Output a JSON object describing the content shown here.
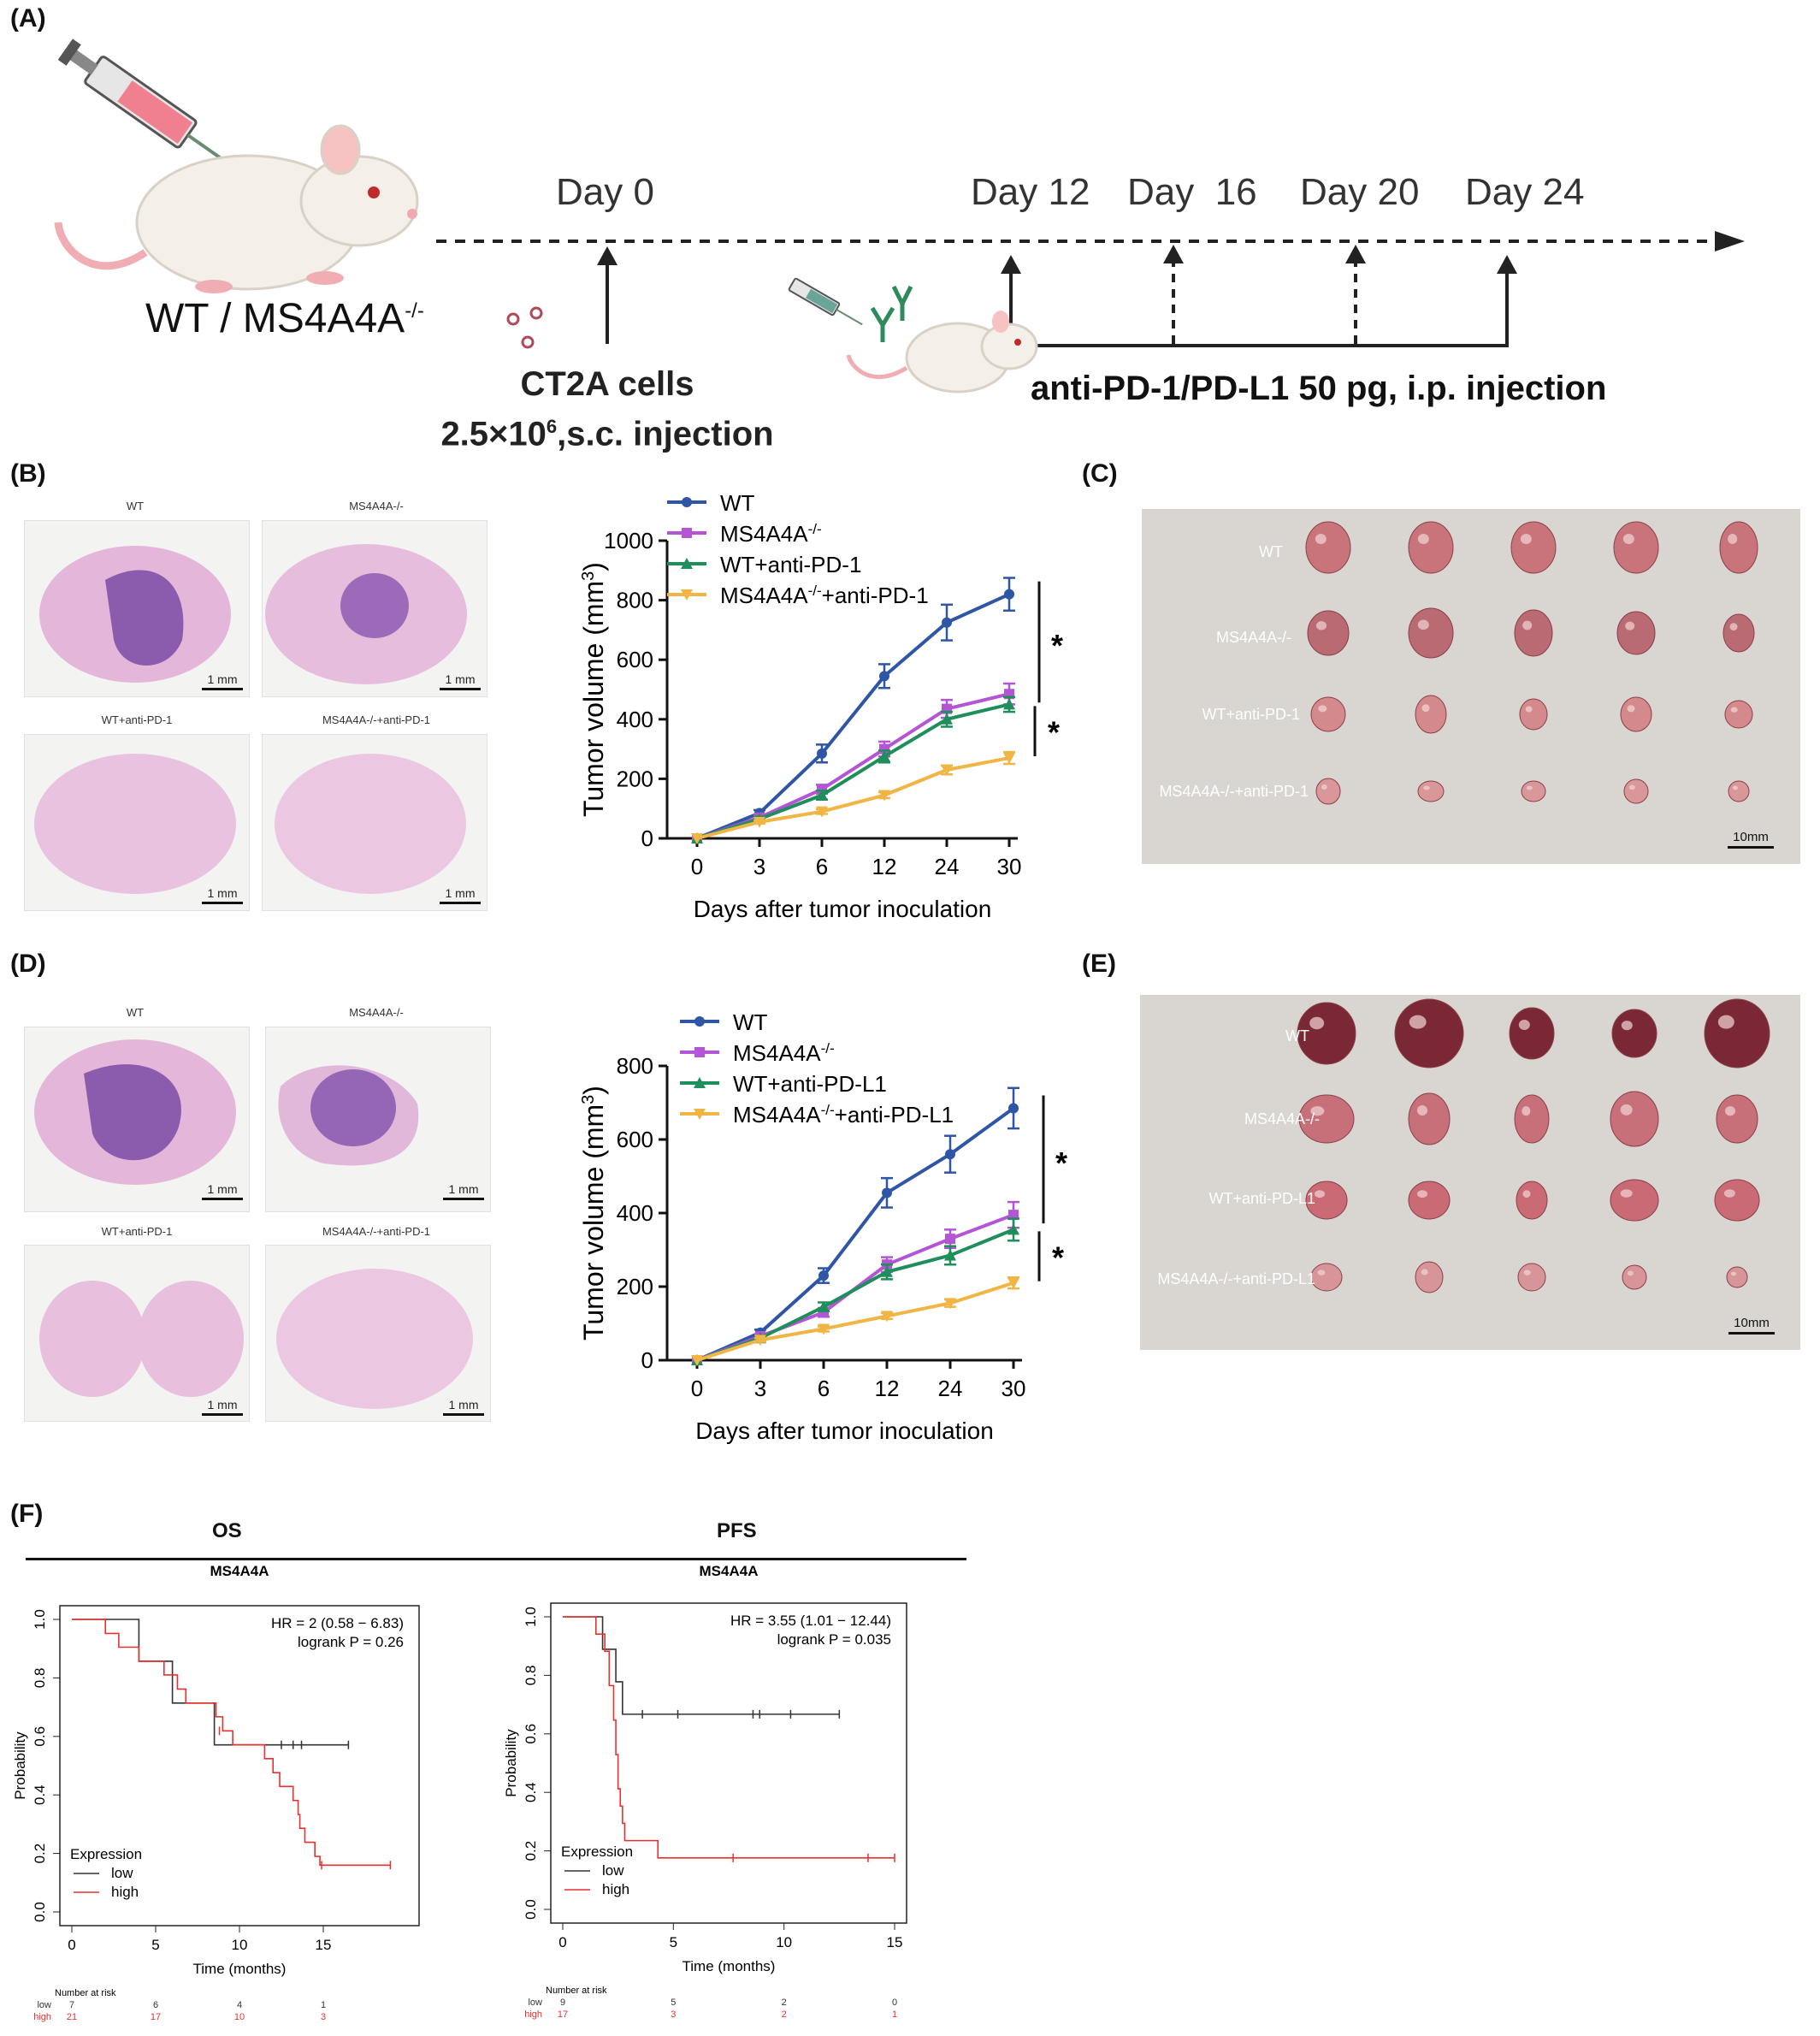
{
  "panel_labels": {
    "A": "(A)",
    "B": "(B)",
    "C": "(C)",
    "D": "(D)",
    "E": "(E)",
    "F": "(F)"
  },
  "timeline": {
    "mouse_label": "WT / MS4A4A",
    "mouse_label_sup": "-/-",
    "days": [
      "Day 0",
      "Day 12",
      "Day  16",
      "Day 20",
      "Day 24"
    ],
    "cells_line1": "CT2A cells",
    "cells_line2_pre": "2.5×10",
    "cells_line2_sup": "6",
    "cells_line2_post": ",s.c. injection",
    "treatment": "anti-PD-1/PD-L1 50 pg, i.p. injection"
  },
  "histology_B": {
    "labels": [
      "WT",
      "MS4A4A-/-",
      "WT+anti-PD-1",
      "MS4A4A-/-+anti-PD-1"
    ],
    "scale": "1 mm"
  },
  "histology_D": {
    "labels": [
      "WT",
      "MS4A4A-/-",
      "WT+anti-PD-1",
      "MS4A4A-/-+anti-PD-1"
    ],
    "scale": "1 mm"
  },
  "photo_C": {
    "labels": [
      "WT",
      "MS4A4A-/-",
      "WT+anti-PD-1",
      "MS4A4A-/-+anti-PD-1"
    ],
    "scale": "10mm",
    "colors": [
      "#c9747a",
      "#b96a72",
      "#d48a8c",
      "#d9979a"
    ]
  },
  "photo_E": {
    "labels": [
      "WT",
      "MS4A4A-/-",
      "WT+anti-PD-L1",
      "MS4A4A-/-+anti-PD-L1"
    ],
    "scale": "10mm",
    "colors": [
      "#7a2836",
      "#c8707a",
      "#c96a75",
      "#d7959a"
    ]
  },
  "chart_data": [
    {
      "type": "line",
      "panel": "B",
      "xlabel": "Days after tumor inoculation",
      "ylabel": "Tumor volume (mm3)",
      "categories": [
        "0",
        "3",
        "6",
        "12",
        "24",
        "30"
      ],
      "ylim": [
        0,
        1000
      ],
      "yticks": [
        0,
        200,
        400,
        600,
        800,
        1000
      ],
      "series": [
        {
          "name": "WT",
          "color": "#2e55a6",
          "marker": "circle",
          "values": [
            0,
            85,
            285,
            545,
            725,
            820
          ],
          "err": [
            0,
            10,
            30,
            40,
            60,
            55
          ]
        },
        {
          "name": "MS4A4A-/-",
          "color": "#b455d6",
          "marker": "square",
          "values": [
            0,
            70,
            165,
            300,
            435,
            485
          ],
          "err": [
            0,
            8,
            15,
            25,
            30,
            35
          ]
        },
        {
          "name": "WT+anti-PD-1",
          "color": "#1e8f5a",
          "marker": "triangle",
          "values": [
            0,
            65,
            145,
            275,
            400,
            450
          ],
          "err": [
            0,
            8,
            15,
            20,
            25,
            25
          ]
        },
        {
          "name": "MS4A4A-/-+anti-PD-1",
          "color": "#f0b545",
          "marker": "triangle-down",
          "values": [
            0,
            55,
            90,
            145,
            230,
            270
          ],
          "err": [
            0,
            5,
            8,
            10,
            15,
            20
          ]
        }
      ],
      "significance": [
        "*",
        "*"
      ]
    },
    {
      "type": "line",
      "panel": "D",
      "xlabel": "Days after tumor inoculation",
      "ylabel": "Tumor volume (mm3)",
      "categories": [
        "0",
        "3",
        "6",
        "12",
        "24",
        "30"
      ],
      "ylim": [
        0,
        800
      ],
      "yticks": [
        0,
        200,
        400,
        600,
        800
      ],
      "series": [
        {
          "name": "WT",
          "color": "#2e55a6",
          "marker": "circle",
          "values": [
            0,
            75,
            230,
            455,
            560,
            685
          ],
          "err": [
            0,
            8,
            20,
            40,
            50,
            55
          ]
        },
        {
          "name": "MS4A4A-/-",
          "color": "#b455d6",
          "marker": "square",
          "values": [
            0,
            65,
            130,
            260,
            330,
            395
          ],
          "err": [
            0,
            6,
            12,
            20,
            25,
            35
          ]
        },
        {
          "name": "WT+anti-PD-L1",
          "color": "#1e8f5a",
          "marker": "triangle",
          "values": [
            0,
            60,
            145,
            240,
            285,
            355
          ],
          "err": [
            0,
            6,
            12,
            20,
            25,
            30
          ]
        },
        {
          "name": "MS4A4A-/-+anti-PD-L1",
          "color": "#f0b545",
          "marker": "triangle-down",
          "values": [
            0,
            55,
            85,
            120,
            155,
            210
          ],
          "err": [
            0,
            5,
            7,
            8,
            10,
            15
          ]
        }
      ],
      "significance": [
        "*",
        "*"
      ]
    },
    {
      "type": "line",
      "panel": "F-OS",
      "header": "OS",
      "title": "MS4A4A",
      "xlabel": "Time (months)",
      "ylabel": "Probability",
      "xlim": [
        0,
        20
      ],
      "xticks": [
        0,
        5,
        10,
        15
      ],
      "ylim": [
        0,
        1
      ],
      "yticks": [
        "0.0",
        "0.2",
        "0.4",
        "0.6",
        "0.8",
        "1.0"
      ],
      "hr": "HR = 2 (0.58 − 6.83)",
      "logrank": "logrank P = 0.26",
      "legend_title": "Expression",
      "series": [
        {
          "name": "low",
          "color": "#333333",
          "steps": [
            [
              0,
              1
            ],
            [
              4,
              1
            ],
            [
              4,
              0.857
            ],
            [
              6,
              0.857
            ],
            [
              6,
              0.714
            ],
            [
              8.5,
              0.714
            ],
            [
              8.5,
              0.571
            ],
            [
              16.5,
              0.571
            ]
          ],
          "censor": [
            [
              12.5,
              0.571
            ],
            [
              13.2,
              0.571
            ],
            [
              13.7,
              0.571
            ],
            [
              16.5,
              0.571
            ]
          ]
        },
        {
          "name": "high",
          "color": "#e8312f",
          "steps": [
            [
              0,
              1
            ],
            [
              2,
              1
            ],
            [
              2,
              0.952
            ],
            [
              2.8,
              0.952
            ],
            [
              2.8,
              0.905
            ],
            [
              4,
              0.905
            ],
            [
              4,
              0.857
            ],
            [
              5.5,
              0.857
            ],
            [
              5.5,
              0.81
            ],
            [
              6.3,
              0.81
            ],
            [
              6.3,
              0.762
            ],
            [
              6.8,
              0.762
            ],
            [
              6.8,
              0.714
            ],
            [
              8.6,
              0.714
            ],
            [
              8.6,
              0.667
            ],
            [
              9,
              0.667
            ],
            [
              9,
              0.619
            ],
            [
              9.6,
              0.619
            ],
            [
              9.6,
              0.571
            ],
            [
              11.5,
              0.571
            ],
            [
              11.5,
              0.524
            ],
            [
              12,
              0.524
            ],
            [
              12,
              0.476
            ],
            [
              12.4,
              0.476
            ],
            [
              12.4,
              0.429
            ],
            [
              13.2,
              0.429
            ],
            [
              13.2,
              0.381
            ],
            [
              13.5,
              0.381
            ],
            [
              13.5,
              0.333
            ],
            [
              13.6,
              0.333
            ],
            [
              13.6,
              0.286
            ],
            [
              13.9,
              0.286
            ],
            [
              13.9,
              0.238
            ],
            [
              14.5,
              0.238
            ],
            [
              14.5,
              0.19
            ],
            [
              14.8,
              0.19
            ],
            [
              14.8,
              0.16
            ],
            [
              19,
              0.16
            ]
          ],
          "censor": [
            [
              8.8,
              0.619
            ],
            [
              14.9,
              0.16
            ],
            [
              19,
              0.16
            ]
          ]
        }
      ],
      "risk_header": "Number at risk",
      "risk_times": [
        0,
        5,
        10,
        15
      ],
      "risk": [
        {
          "label": "low",
          "counts": [
            "7",
            "6",
            "4",
            "1"
          ]
        },
        {
          "label": "high",
          "counts": [
            "21",
            "17",
            "10",
            "3"
          ]
        }
      ]
    },
    {
      "type": "line",
      "panel": "F-PFS",
      "header": "PFS",
      "title": "MS4A4A",
      "xlabel": "Time (months)",
      "ylabel": "Probability",
      "xlim": [
        0,
        15
      ],
      "xticks": [
        0,
        5,
        10,
        15
      ],
      "ylim": [
        0,
        1
      ],
      "yticks": [
        "0.0",
        "0.2",
        "0.4",
        "0.6",
        "0.8",
        "1.0"
      ],
      "hr": "HR = 3.55 (1.01 − 12.44)",
      "logrank": "logrank P = 0.035",
      "legend_title": "Expression",
      "series": [
        {
          "name": "low",
          "color": "#333333",
          "steps": [
            [
              0,
              1
            ],
            [
              1.8,
              1
            ],
            [
              1.8,
              0.889
            ],
            [
              2.4,
              0.889
            ],
            [
              2.4,
              0.778
            ],
            [
              2.7,
              0.778
            ],
            [
              2.7,
              0.667
            ],
            [
              12.5,
              0.667
            ]
          ],
          "censor": [
            [
              3.6,
              0.667
            ],
            [
              5.2,
              0.667
            ],
            [
              8.6,
              0.667
            ],
            [
              8.9,
              0.667
            ],
            [
              10.3,
              0.667
            ],
            [
              12.5,
              0.667
            ]
          ]
        },
        {
          "name": "high",
          "color": "#e8312f",
          "steps": [
            [
              0,
              1
            ],
            [
              1.5,
              1
            ],
            [
              1.5,
              0.941
            ],
            [
              1.9,
              0.941
            ],
            [
              1.9,
              0.882
            ],
            [
              2.1,
              0.882
            ],
            [
              2.1,
              0.765
            ],
            [
              2.3,
              0.765
            ],
            [
              2.3,
              0.647
            ],
            [
              2.4,
              0.647
            ],
            [
              2.4,
              0.529
            ],
            [
              2.5,
              0.529
            ],
            [
              2.5,
              0.412
            ],
            [
              2.6,
              0.412
            ],
            [
              2.6,
              0.353
            ],
            [
              2.7,
              0.353
            ],
            [
              2.7,
              0.294
            ],
            [
              2.8,
              0.294
            ],
            [
              2.8,
              0.235
            ],
            [
              4.3,
              0.235
            ],
            [
              4.3,
              0.176
            ],
            [
              15,
              0.176
            ]
          ],
          "censor": [
            [
              7.7,
              0.176
            ],
            [
              13.8,
              0.176
            ],
            [
              15,
              0.176
            ]
          ]
        }
      ],
      "risk_header": "Number at risk",
      "risk_times": [
        0,
        5,
        10,
        15
      ],
      "risk": [
        {
          "label": "low",
          "counts": [
            "9",
            "5",
            "2",
            "0"
          ]
        },
        {
          "label": "high",
          "counts": [
            "17",
            "3",
            "2",
            "1"
          ]
        }
      ]
    }
  ]
}
